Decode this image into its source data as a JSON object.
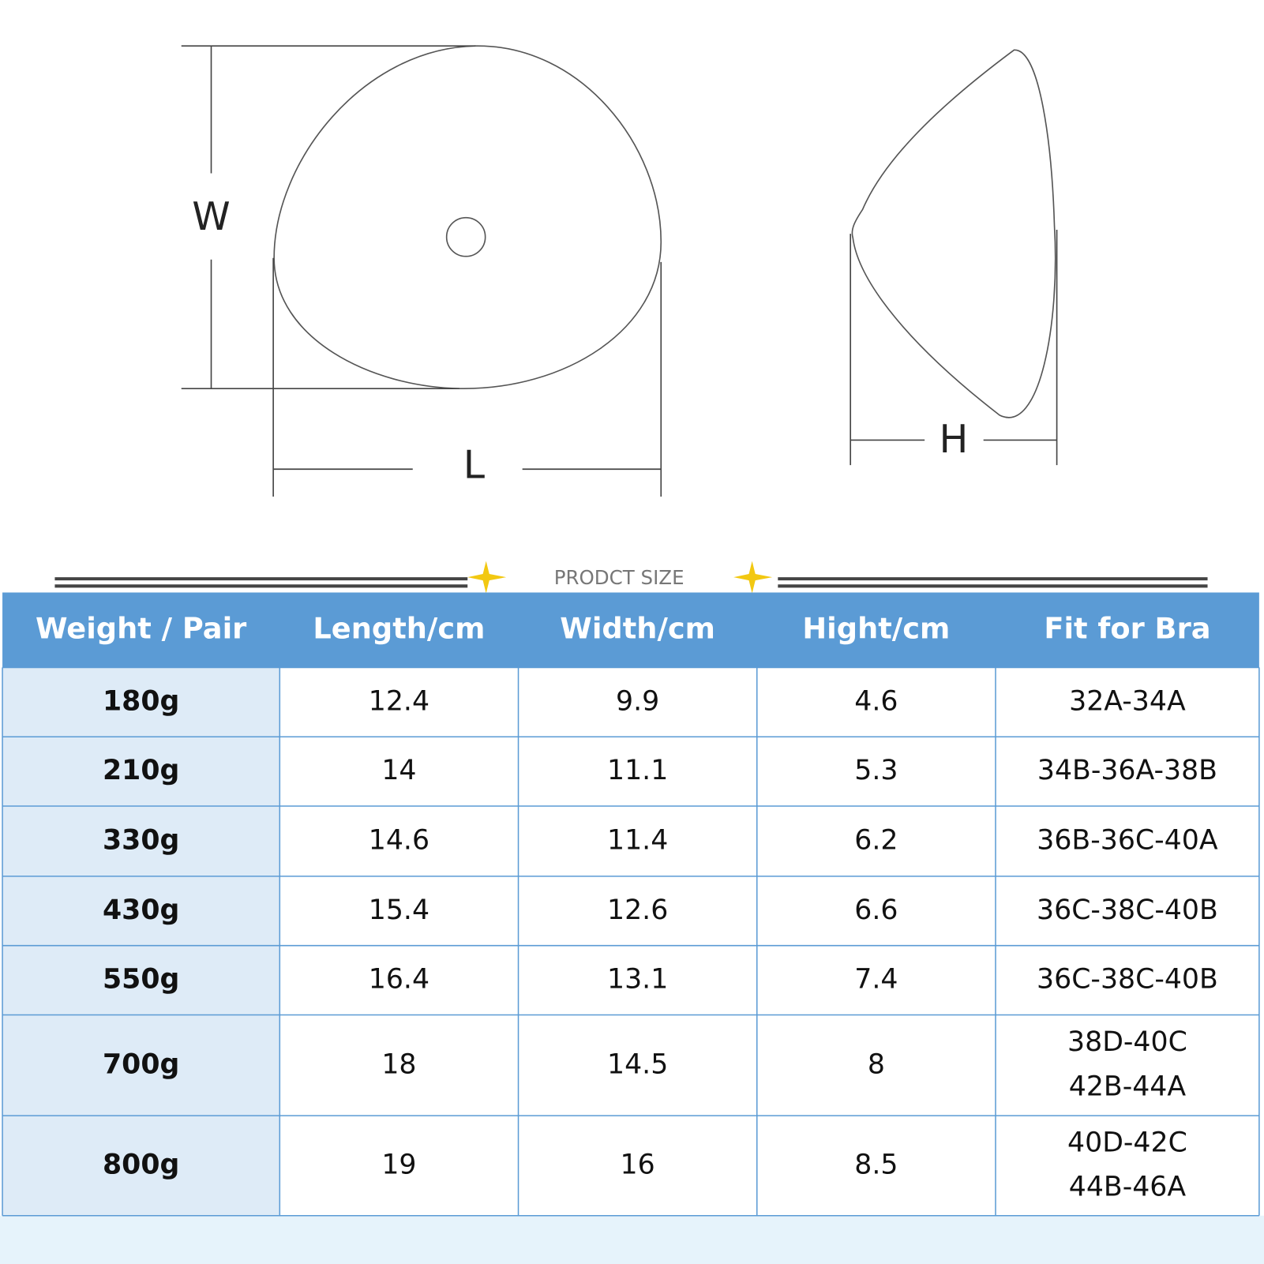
{
  "diagram": {
    "width_label": "W",
    "length_label": "L",
    "height_label": "H"
  },
  "banner": "PRODCT SIZE",
  "table": {
    "headers": [
      "Weight / Pair",
      "Length/cm",
      "Width/cm",
      "Hight/cm",
      "Fit for Bra"
    ],
    "rows": [
      [
        "180g",
        "12.4",
        "9.9",
        "4.6",
        [
          "32A-34A"
        ]
      ],
      [
        "210g",
        "14",
        "11.1",
        "5.3",
        [
          "34B-36A-38B"
        ]
      ],
      [
        "330g",
        "14.6",
        "11.4",
        "6.2",
        [
          "36B-36C-40A"
        ]
      ],
      [
        "430g",
        "15.4",
        "12.6",
        "6.6",
        [
          "36C-38C-40B"
        ]
      ],
      [
        "550g",
        "16.4",
        "13.1",
        "7.4",
        [
          "36C-38C-40B"
        ]
      ],
      [
        "700g",
        "18",
        "14.5",
        "8",
        [
          "38D-40C",
          "42B-44A"
        ]
      ],
      [
        "800g",
        "19",
        "16",
        "8.5",
        [
          "40D-42C",
          "44B-46A"
        ]
      ]
    ]
  }
}
